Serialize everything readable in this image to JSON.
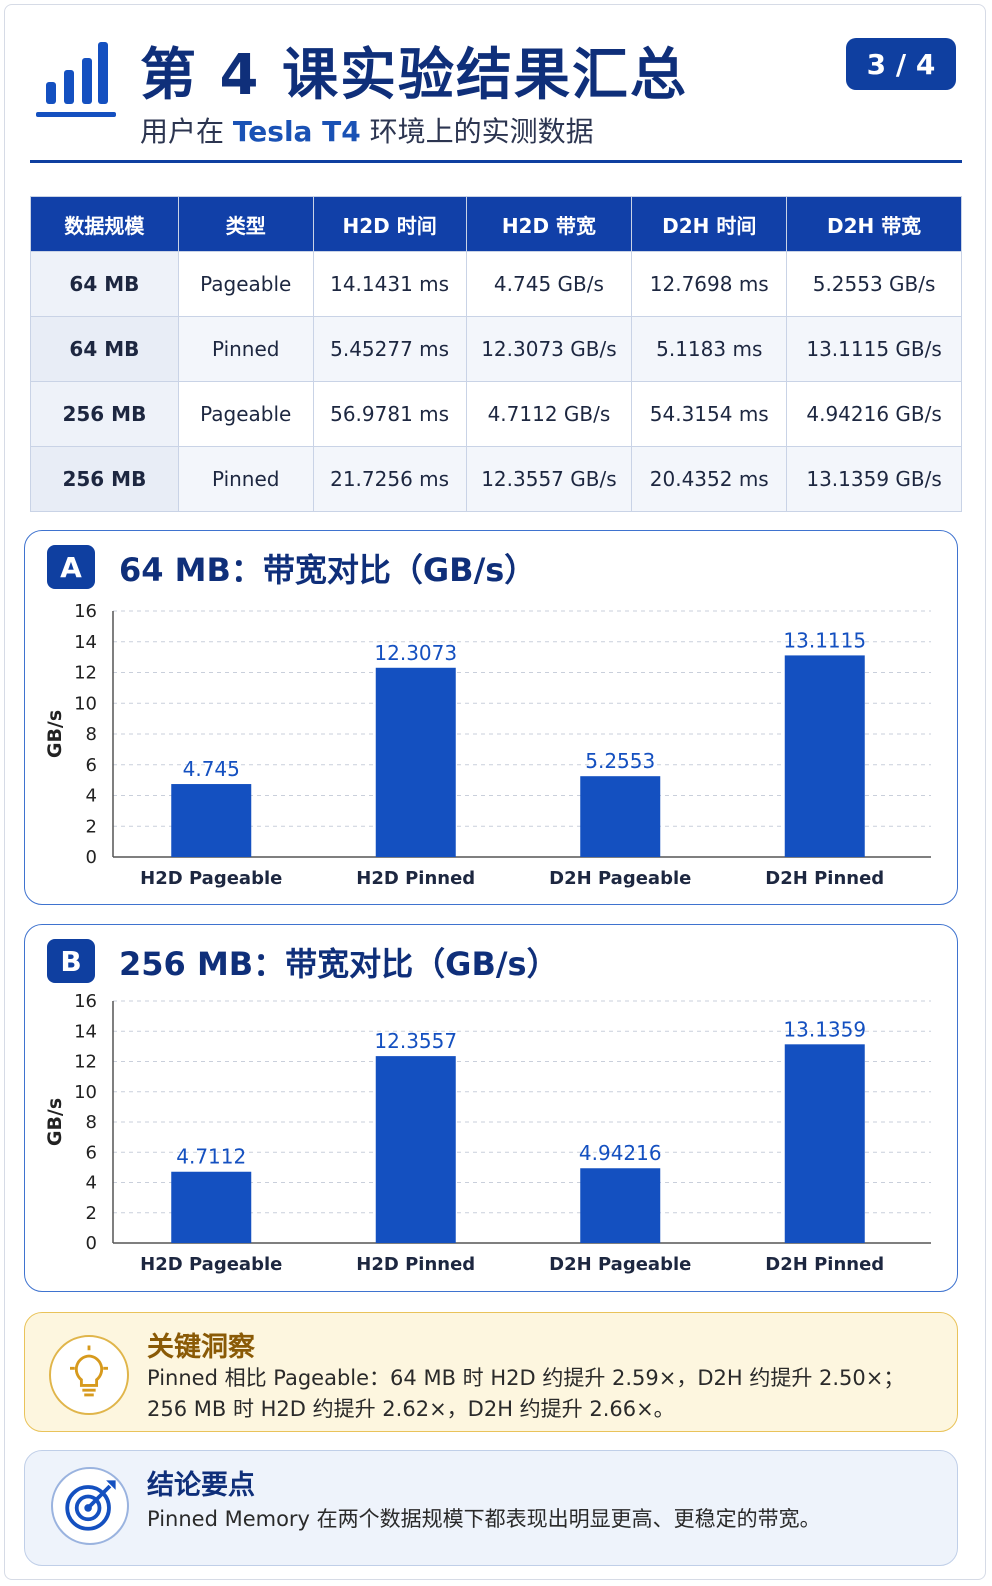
{
  "header": {
    "title": "第 4 课实验结果汇总",
    "subtitle_pre": "用户在 ",
    "subtitle_hl": "Tesla T4",
    "subtitle_post": " 环境上的实测数据",
    "page_indicator": "3 / 4",
    "logo_icon": "bar-chart-icon"
  },
  "table": {
    "headers": [
      "数据规模",
      "类型",
      "H2D 时间",
      "H2D 带宽",
      "D2H 时间",
      "D2H 带宽"
    ],
    "rows": [
      [
        "64 MB",
        "Pageable",
        "14.1431 ms",
        "4.745 GB/s",
        "12.7698 ms",
        "5.2553 GB/s"
      ],
      [
        "64 MB",
        "Pinned",
        "5.45277 ms",
        "12.3073 GB/s",
        "5.1183 ms",
        "13.1115 GB/s"
      ],
      [
        "256 MB",
        "Pageable",
        "56.9781 ms",
        "4.7112 GB/s",
        "54.3154 ms",
        "4.94216 GB/s"
      ],
      [
        "256 MB",
        "Pinned",
        "21.7256 ms",
        "12.3557 GB/s",
        "20.4352 ms",
        "13.1359 GB/s"
      ]
    ]
  },
  "chart_data": [
    {
      "type": "bar",
      "badge": "A",
      "title": "64 MB：带宽对比（GB/s）",
      "ylabel": "GB/s",
      "categories": [
        "H2D Pageable",
        "H2D Pinned",
        "D2H Pageable",
        "D2H Pinned"
      ],
      "values": [
        4.745,
        12.3073,
        5.2553,
        13.1115
      ],
      "value_labels": [
        "4.745",
        "12.3073",
        "5.2553",
        "13.1115"
      ],
      "ylim": [
        0,
        16
      ],
      "yticks": [
        0,
        2,
        4,
        6,
        8,
        10,
        12,
        14,
        16
      ],
      "grid": true,
      "bar_color": "#1450c0"
    },
    {
      "type": "bar",
      "badge": "B",
      "title": "256 MB：带宽对比（GB/s）",
      "ylabel": "GB/s",
      "categories": [
        "H2D Pageable",
        "H2D Pinned",
        "D2H Pageable",
        "D2H Pinned"
      ],
      "values": [
        4.7112,
        12.3557,
        4.94216,
        13.1359
      ],
      "value_labels": [
        "4.7112",
        "12.3557",
        "4.94216",
        "13.1359"
      ],
      "ylim": [
        0,
        16
      ],
      "yticks": [
        0,
        2,
        4,
        6,
        8,
        10,
        12,
        14,
        16
      ],
      "grid": true,
      "bar_color": "#1450c0"
    }
  ],
  "insight": {
    "icon": "lightbulb-icon",
    "heading": "关键洞察",
    "line1": "Pinned 相比 Pageable：64 MB 时 H2D 约提升 2.59×，D2H 约提升 2.50×；",
    "line2": "256 MB 时 H2D 约提升 2.62×，D2H 约提升 2.66×。"
  },
  "conclusion": {
    "icon": "target-icon",
    "heading": "结论要点",
    "text": "Pinned Memory 在两个数据规模下都表现出明显更高、更稳定的带宽。"
  }
}
